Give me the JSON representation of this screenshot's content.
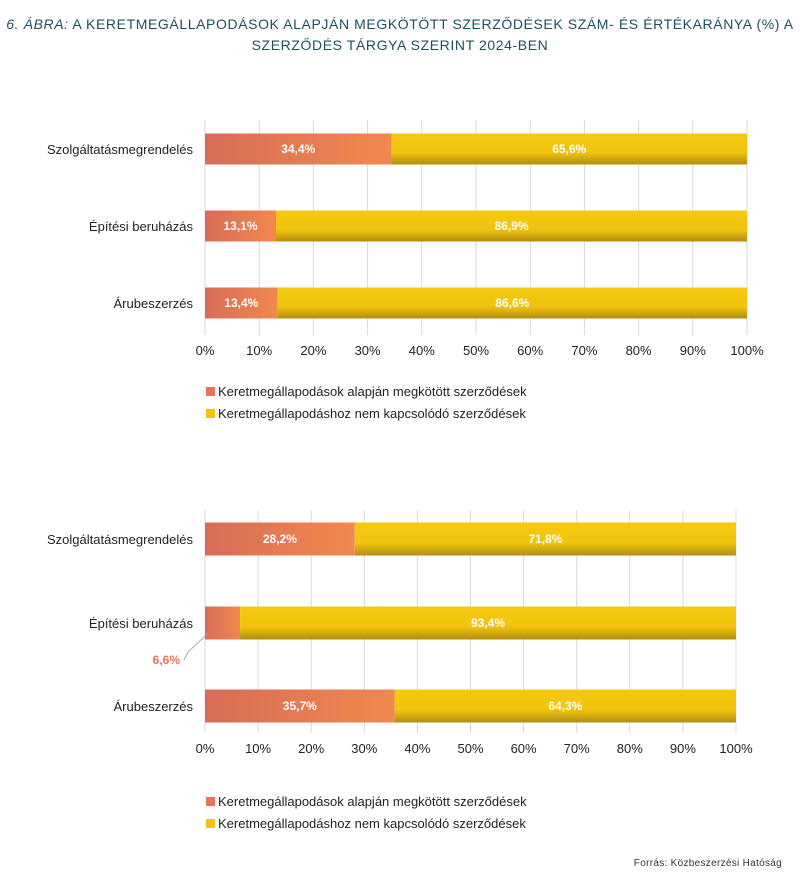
{
  "title": {
    "figure_label": "6. ábra:",
    "text": "A keretmegállapodások alapján megkötött szerződések szám- és értékaránya (%) a szerződés tárgya szerint 2024-ben"
  },
  "source": "Forrás: Közbeszerzési Hatóság",
  "colors": {
    "series1": "#e8735a",
    "series2": "#f0c30f",
    "outlabel": "#e8735a"
  },
  "chart_data": [
    {
      "type": "bar",
      "orientation": "horizontal",
      "stacked": true,
      "categories": [
        "Szolgáltatásmegrendelés",
        "Építési beruházás",
        "Árubeszerzés"
      ],
      "series": [
        {
          "name": "Keretmegállapodások alapján megkötött szerződések",
          "values": [
            34.4,
            13.1,
            13.4
          ],
          "labels": [
            "34,4%",
            "13,1%",
            "13,4%"
          ]
        },
        {
          "name": "Keretmegállapodáshoz nem kapcsolódó szerződések",
          "values": [
            65.6,
            86.9,
            86.6
          ],
          "labels": [
            "65,6%",
            "86,9%",
            "86,6%"
          ]
        }
      ],
      "xlim": [
        0,
        100
      ],
      "xticks": [
        "0%",
        "10%",
        "20%",
        "30%",
        "40%",
        "50%",
        "60%",
        "70%",
        "80%",
        "90%",
        "100%"
      ],
      "grid": true,
      "legend_position": "bottom-left"
    },
    {
      "type": "bar",
      "orientation": "horizontal",
      "stacked": true,
      "categories": [
        "Szolgáltatásmegrendelés",
        "Építési beruházás",
        "Árubeszerzés"
      ],
      "series": [
        {
          "name": "Keretmegállapodások alapján megkötött szerződések",
          "values": [
            28.2,
            6.6,
            35.7
          ],
          "labels": [
            "28,2%",
            "6,6%",
            "35,7%"
          ]
        },
        {
          "name": "Keretmegállapodáshoz nem kapcsolódó szerződések",
          "values": [
            71.8,
            93.4,
            64.3
          ],
          "labels": [
            "71,8%",
            "93,4%",
            "64,3%"
          ]
        }
      ],
      "xlim": [
        0,
        100
      ],
      "xticks": [
        "0%",
        "10%",
        "20%",
        "30%",
        "40%",
        "50%",
        "60%",
        "70%",
        "80%",
        "90%",
        "100%"
      ],
      "grid": true,
      "legend_position": "bottom-left"
    }
  ]
}
